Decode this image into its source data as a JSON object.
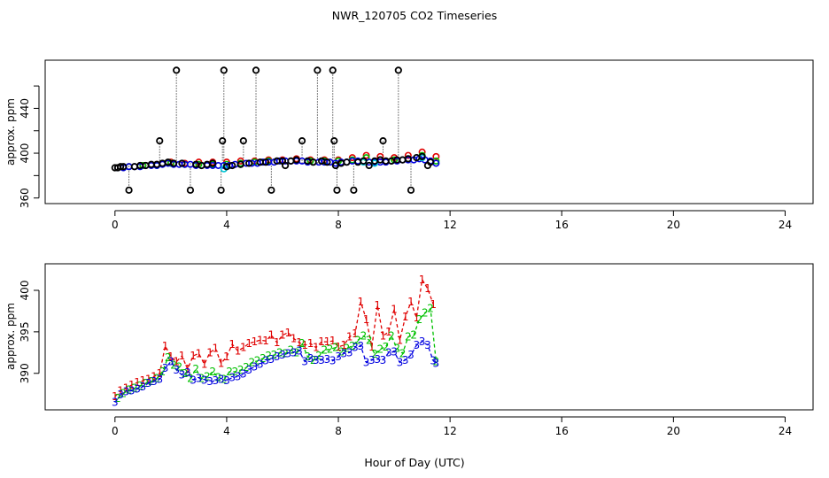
{
  "title": "NWR_120705  CO2 Timeseries",
  "xlabel": "Hour of Day (UTC)",
  "colors": {
    "red": "#e00000",
    "green": "#00c000",
    "blue": "#0000e0",
    "cyan": "#00c8d8",
    "black": "#000000"
  },
  "chart_data": [
    {
      "type": "scatter",
      "panel": "top",
      "ylabel": "approx. ppm",
      "xlim": [
        -2.5,
        25.0
      ],
      "ylim": [
        355,
        483
      ],
      "xticks": [
        0,
        4,
        8,
        12,
        16,
        20,
        24
      ],
      "yticks": [
        360,
        400,
        440
      ],
      "yticks_minor": [
        380,
        420,
        460
      ],
      "series": [
        {
          "name": "red",
          "color": "#e00000",
          "x": [
            0.1,
            0.5,
            1.0,
            1.5,
            2.0,
            2.5,
            3.0,
            3.5,
            4.0,
            4.5,
            5.0,
            5.5,
            6.0,
            6.5,
            7.0,
            7.5,
            8.0,
            8.5,
            9.0,
            9.5,
            10.0,
            10.5,
            11.0,
            11.5
          ],
          "y": [
            387,
            388,
            389,
            390,
            392,
            391,
            392,
            392,
            392,
            393,
            393,
            394,
            394,
            395,
            394,
            394,
            394,
            396,
            398,
            397,
            396,
            398,
            401,
            397
          ]
        },
        {
          "name": "green",
          "color": "#00c000",
          "x": [
            0.1,
            0.5,
            1.0,
            1.5,
            2.0,
            2.5,
            3.0,
            3.5,
            4.0,
            4.5,
            5.0,
            5.5,
            6.0,
            6.5,
            7.0,
            7.5,
            8.0,
            8.5,
            9.0,
            9.5,
            10.0,
            10.5,
            11.0,
            11.5
          ],
          "y": [
            387,
            388,
            389,
            389,
            391,
            390,
            390,
            390,
            390,
            391,
            392,
            393,
            393,
            394,
            393,
            393,
            393,
            394,
            396,
            394,
            394,
            395,
            398,
            393
          ]
        },
        {
          "name": "blue",
          "color": "#0000e0",
          "x": [
            0.1,
            0.3,
            0.5,
            0.7,
            0.9,
            1.1,
            1.3,
            1.5,
            1.7,
            1.9,
            2.1,
            2.3,
            2.5,
            2.7,
            2.9,
            3.1,
            3.3,
            3.5,
            3.7,
            3.9,
            4.1,
            4.3,
            4.5,
            4.7,
            4.9,
            5.1,
            5.3,
            5.5,
            5.7,
            5.9,
            6.1,
            6.3,
            6.5,
            6.7,
            6.9,
            7.1,
            7.3,
            7.5,
            7.7,
            7.9,
            8.1,
            8.3,
            8.5,
            8.7,
            8.9,
            9.1,
            9.3,
            9.5,
            9.7,
            9.9,
            10.1,
            10.3,
            10.5,
            10.7,
            10.9,
            11.1,
            11.3,
            11.5
          ],
          "y": [
            387,
            387,
            388,
            388,
            388,
            389,
            389,
            389,
            390,
            391,
            390,
            390,
            390,
            390,
            389,
            389,
            389,
            389,
            389,
            389,
            389,
            390,
            390,
            391,
            391,
            391,
            392,
            392,
            392,
            393,
            393,
            393,
            393,
            393,
            392,
            392,
            392,
            392,
            392,
            391,
            392,
            392,
            393,
            393,
            393,
            392,
            392,
            392,
            392,
            393,
            393,
            394,
            394,
            394,
            395,
            394,
            393,
            391
          ]
        },
        {
          "name": "cyan",
          "color": "#00c8d8",
          "x": [
            3.9,
            4.0,
            8.9,
            9.3,
            11.0
          ],
          "y": [
            386,
            388,
            392,
            391,
            396
          ]
        },
        {
          "name": "black",
          "color": "#000000",
          "x": [
            0,
            0.1,
            0.2,
            0.3,
            0.5,
            0.7,
            0.9,
            1.1,
            1.3,
            1.5,
            1.6,
            1.7,
            1.9,
            2.1,
            2.2,
            2.4,
            2.7,
            2.9,
            3.1,
            3.3,
            3.5,
            3.8,
            3.85,
            3.9,
            4.0,
            4.2,
            4.5,
            4.6,
            4.8,
            5.05,
            5.2,
            5.4,
            5.6,
            5.8,
            6.0,
            6.1,
            6.3,
            6.5,
            6.7,
            6.9,
            7.1,
            7.25,
            7.4,
            7.6,
            7.8,
            7.85,
            7.9,
            7.95,
            8.1,
            8.3,
            8.55,
            8.7,
            8.9,
            9.1,
            9.3,
            9.5,
            9.6,
            9.7,
            9.9,
            10.1,
            10.15,
            10.3,
            10.5,
            10.6,
            10.8,
            11.0,
            11.2,
            11.3
          ],
          "y": [
            387,
            387,
            388,
            388,
            367,
            388,
            389,
            389,
            390,
            390,
            411,
            391,
            392,
            391,
            474,
            391,
            367,
            390,
            389,
            390,
            391,
            367,
            411,
            474,
            388,
            389,
            390,
            411,
            391,
            474,
            392,
            392,
            367,
            393,
            393,
            389,
            393,
            394,
            411,
            393,
            392,
            474,
            393,
            392,
            474,
            411,
            389,
            367,
            391,
            392,
            367,
            392,
            393,
            389,
            393,
            394,
            411,
            393,
            393,
            394,
            474,
            394,
            395,
            367,
            396,
            397,
            389,
            392
          ]
        }
      ]
    },
    {
      "type": "scatter",
      "panel": "bottom",
      "ylabel": "approx. ppm",
      "xlim": [
        -2.5,
        25.0
      ],
      "ylim": [
        385.6,
        403.2
      ],
      "xticks": [
        0,
        4,
        8,
        12,
        16,
        20,
        24
      ],
      "yticks": [
        390,
        395,
        400
      ],
      "series": [
        {
          "name": "1",
          "color": "#e00000",
          "x": [
            0.0,
            0.2,
            0.4,
            0.6,
            0.8,
            1.0,
            1.2,
            1.4,
            1.6,
            1.8,
            2.0,
            2.2,
            2.4,
            2.6,
            2.8,
            3.0,
            3.2,
            3.4,
            3.6,
            3.8,
            4.0,
            4.2,
            4.4,
            4.6,
            4.8,
            5.0,
            5.2,
            5.4,
            5.6,
            5.8,
            6.0,
            6.2,
            6.4,
            6.6,
            6.8,
            7.0,
            7.2,
            7.4,
            7.6,
            7.8,
            8.0,
            8.2,
            8.4,
            8.6,
            8.8,
            9.0,
            9.2,
            9.4,
            9.6,
            9.8,
            10.0,
            10.2,
            10.4,
            10.6,
            10.8,
            11.0,
            11.2,
            11.4
          ],
          "y": [
            387.2,
            387.9,
            388.2,
            388.6,
            388.9,
            389.1,
            389.3,
            389.6,
            390.0,
            393.3,
            392.0,
            391.4,
            392.1,
            390.5,
            392.1,
            392.4,
            391.1,
            392.5,
            393.0,
            391.2,
            392.0,
            393.5,
            392.7,
            393.1,
            393.6,
            393.8,
            394.0,
            393.9,
            394.6,
            393.7,
            394.6,
            394.9,
            394.2,
            393.7,
            393.4,
            393.6,
            393.1,
            393.8,
            393.8,
            393.9,
            393.2,
            393.4,
            394.4,
            394.8,
            398.6,
            396.5,
            393.2,
            398.2,
            394.5,
            395.0,
            397.7,
            394.0,
            396.8,
            398.6,
            396.7,
            401.3,
            400.2,
            398.3
          ]
        },
        {
          "name": "2",
          "color": "#00c000",
          "x": [
            0.1,
            0.3,
            0.5,
            0.7,
            0.9,
            1.1,
            1.3,
            1.5,
            1.7,
            1.9,
            2.1,
            2.3,
            2.5,
            2.7,
            2.9,
            3.1,
            3.3,
            3.5,
            3.7,
            3.9,
            4.1,
            4.3,
            4.5,
            4.7,
            4.9,
            5.1,
            5.3,
            5.5,
            5.7,
            5.9,
            6.1,
            6.3,
            6.5,
            6.7,
            6.9,
            7.1,
            7.3,
            7.5,
            7.7,
            7.9,
            8.1,
            8.3,
            8.5,
            8.7,
            8.9,
            9.1,
            9.3,
            9.5,
            9.7,
            9.9,
            10.1,
            10.3,
            10.5,
            10.7,
            10.9,
            11.1,
            11.3,
            11.5
          ],
          "y": [
            387.0,
            387.6,
            388.0,
            388.2,
            388.5,
            388.8,
            389.0,
            389.4,
            390.2,
            391.9,
            391.0,
            390.8,
            390.0,
            389.4,
            390.5,
            389.4,
            389.6,
            390.2,
            389.5,
            389.3,
            390.2,
            390.2,
            390.4,
            390.7,
            391.3,
            391.5,
            391.8,
            392.1,
            392.2,
            392.5,
            392.4,
            392.8,
            392.5,
            393.6,
            392.0,
            391.6,
            392.1,
            392.8,
            392.9,
            393.1,
            392.6,
            393.0,
            393.3,
            394.0,
            394.5,
            394.0,
            392.3,
            392.9,
            393.2,
            394.5,
            393.0,
            392.4,
            394.4,
            394.6,
            396.5,
            397.3,
            397.8,
            391.4
          ]
        },
        {
          "name": "3",
          "color": "#0000e0",
          "x": [
            0.0,
            0.2,
            0.4,
            0.6,
            0.8,
            1.0,
            1.2,
            1.4,
            1.6,
            1.8,
            2.0,
            2.2,
            2.4,
            2.6,
            2.8,
            3.0,
            3.2,
            3.4,
            3.6,
            3.8,
            4.0,
            4.2,
            4.4,
            4.6,
            4.8,
            5.0,
            5.2,
            5.4,
            5.6,
            5.8,
            6.0,
            6.2,
            6.4,
            6.6,
            6.8,
            7.0,
            7.2,
            7.4,
            7.6,
            7.8,
            8.0,
            8.2,
            8.4,
            8.6,
            8.8,
            9.0,
            9.2,
            9.4,
            9.6,
            9.8,
            10.0,
            10.2,
            10.4,
            10.6,
            10.8,
            11.0,
            11.2,
            11.4,
            11.5
          ],
          "y": [
            386.5,
            387.4,
            387.8,
            387.9,
            388.1,
            388.4,
            388.8,
            389.0,
            389.3,
            390.6,
            391.4,
            390.4,
            389.8,
            390.1,
            389.2,
            389.4,
            389.2,
            389.0,
            389.1,
            389.3,
            389.1,
            389.5,
            389.6,
            389.9,
            390.4,
            390.8,
            391.1,
            391.5,
            391.7,
            392.0,
            392.2,
            392.4,
            392.5,
            392.7,
            391.4,
            391.8,
            391.6,
            391.6,
            391.7,
            391.5,
            392.0,
            392.4,
            392.5,
            393.1,
            393.3,
            391.3,
            391.6,
            391.7,
            391.6,
            392.5,
            392.6,
            391.3,
            391.6,
            392.2,
            393.4,
            393.8,
            393.4,
            391.5,
            391.2
          ]
        }
      ]
    }
  ]
}
